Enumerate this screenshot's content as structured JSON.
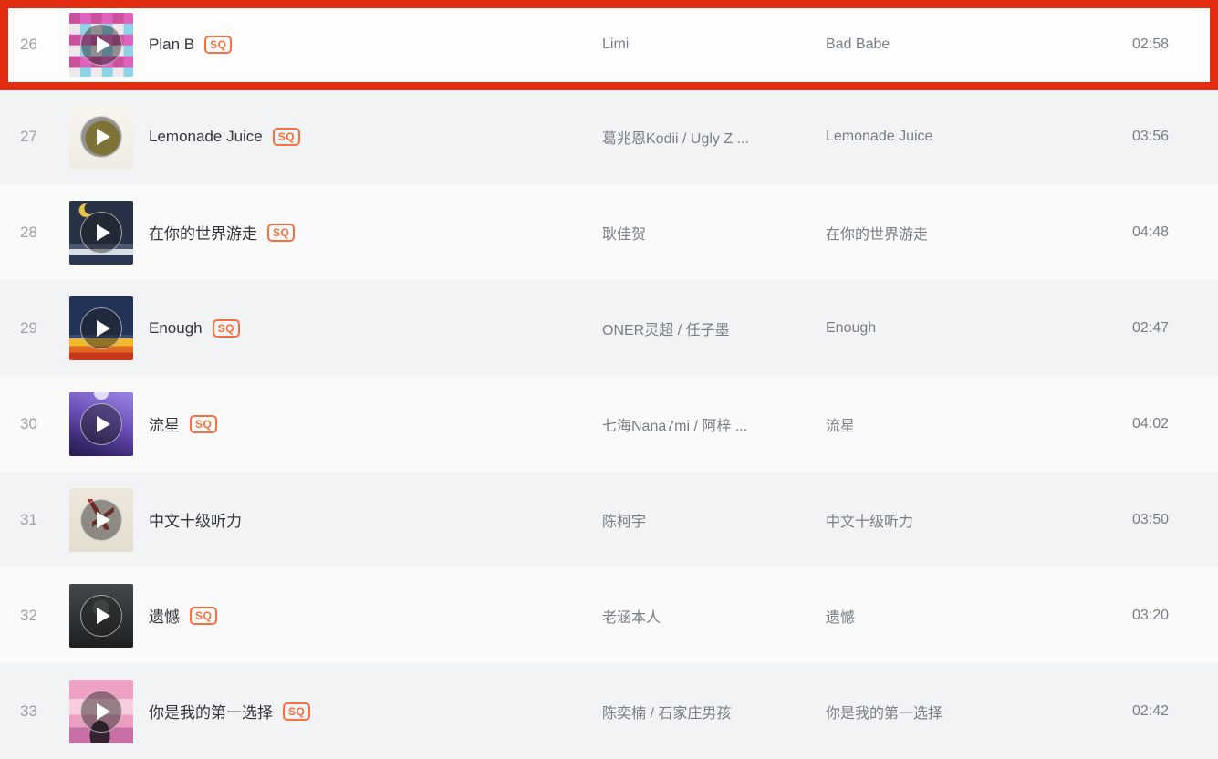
{
  "badges": {
    "sq_label": "SQ"
  },
  "colors": {
    "highlight_border": "#e22d10",
    "sq_badge": "#f96f3d",
    "row_white": "#fafafa",
    "row_gray": "#f2f3f5",
    "title_text": "#31353a",
    "secondary_text": "#797e85"
  },
  "songs": [
    {
      "index": "26",
      "title": "Plan B",
      "sq": true,
      "artist": "Limi",
      "album": "Bad Babe",
      "duration": "02:58",
      "cover": "photo-collage",
      "highlighted": true
    },
    {
      "index": "27",
      "title": "Lemonade Juice",
      "sq": true,
      "artist": "葛兆恩Kodii / Ugly Z ...",
      "album": "Lemonade Juice",
      "duration": "03:56",
      "cover": "lemonade",
      "highlighted": false
    },
    {
      "index": "28",
      "title": "在你的世界游走",
      "sq": true,
      "artist": "耿佳贺",
      "album": "在你的世界游走",
      "duration": "04:48",
      "cover": "night-sea",
      "highlighted": false
    },
    {
      "index": "29",
      "title": "Enough",
      "sq": true,
      "artist": "ONER灵超 / 任子墨",
      "album": "Enough",
      "duration": "02:47",
      "cover": "pixel-game",
      "highlighted": false
    },
    {
      "index": "30",
      "title": "流星",
      "sq": true,
      "artist": "七海Nana7mi / 阿梓 ...",
      "album": "流星",
      "duration": "04:02",
      "cover": "concert-purple",
      "highlighted": false
    },
    {
      "index": "31",
      "title": "中文十级听力",
      "sq": false,
      "artist": "陈柯宇",
      "album": "中文十级听力",
      "duration": "03:50",
      "cover": "calligraphy",
      "highlighted": false
    },
    {
      "index": "32",
      "title": "遗憾",
      "sq": true,
      "artist": "老涵本人",
      "album": "遗憾",
      "duration": "03:20",
      "cover": "monochrome",
      "highlighted": false
    },
    {
      "index": "33",
      "title": "你是我的第一选择",
      "sq": true,
      "artist": "陈奕楠 / 石家庄男孩",
      "album": "你是我的第一选择",
      "duration": "02:42",
      "cover": "pink-sunset",
      "highlighted": false
    }
  ]
}
